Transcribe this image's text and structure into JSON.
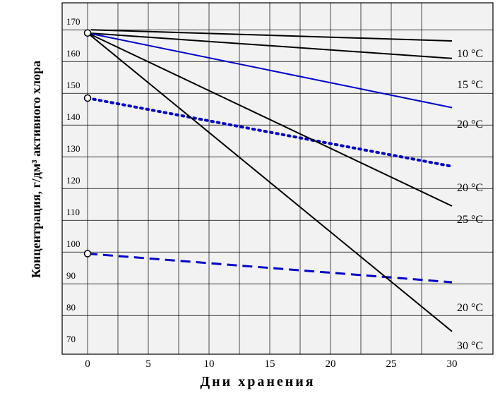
{
  "chart_data": {
    "type": "line",
    "title": "",
    "xlabel": "Дни  хранения",
    "ylabel": "Концентрация,  г/дм³ активного хлора",
    "xlim": [
      -3,
      31
    ],
    "ylim": [
      67,
      173
    ],
    "x_ticks": [
      "0",
      "5",
      "10",
      "15",
      "20",
      "25",
      "30"
    ],
    "y_ticks": [
      "70",
      "80",
      "90",
      "100",
      "110",
      "120",
      "130",
      "140",
      "150",
      "160",
      "170"
    ],
    "grid": true,
    "background_color": "#f2f2f2",
    "series": [
      {
        "label": "10 °C",
        "color": "#000000",
        "style": "solid",
        "points": [
          [
            0.3,
            167.5
          ],
          [
            30,
            164
          ]
        ]
      },
      {
        "label": "15 °C",
        "color": "#000000",
        "style": "solid",
        "points": [
          [
            0,
            166.5
          ],
          [
            30,
            158.5
          ]
        ]
      },
      {
        "label": "20 °C",
        "color": "#0000cc",
        "style": "solid",
        "points": [
          [
            0,
            166.5
          ],
          [
            30,
            143
          ]
        ]
      },
      {
        "label": "20 °C",
        "color": "#0000cc",
        "style": "dotted",
        "points": [
          [
            0,
            146
          ],
          [
            30,
            124.5
          ]
        ]
      },
      {
        "label": "25 °C",
        "color": "#000000",
        "style": "solid",
        "points": [
          [
            0,
            166.5
          ],
          [
            30,
            112
          ]
        ]
      },
      {
        "label": "20 °C",
        "color": "#0000cc",
        "style": "dashed",
        "points": [
          [
            0,
            97
          ],
          [
            30,
            88
          ]
        ]
      },
      {
        "label": "30 °C",
        "color": "#000000",
        "style": "solid",
        "points": [
          [
            0,
            166.5
          ],
          [
            30,
            72.5
          ]
        ]
      }
    ],
    "start_markers": [
      [
        0,
        166.5
      ],
      [
        0,
        146
      ],
      [
        0,
        97
      ]
    ]
  }
}
